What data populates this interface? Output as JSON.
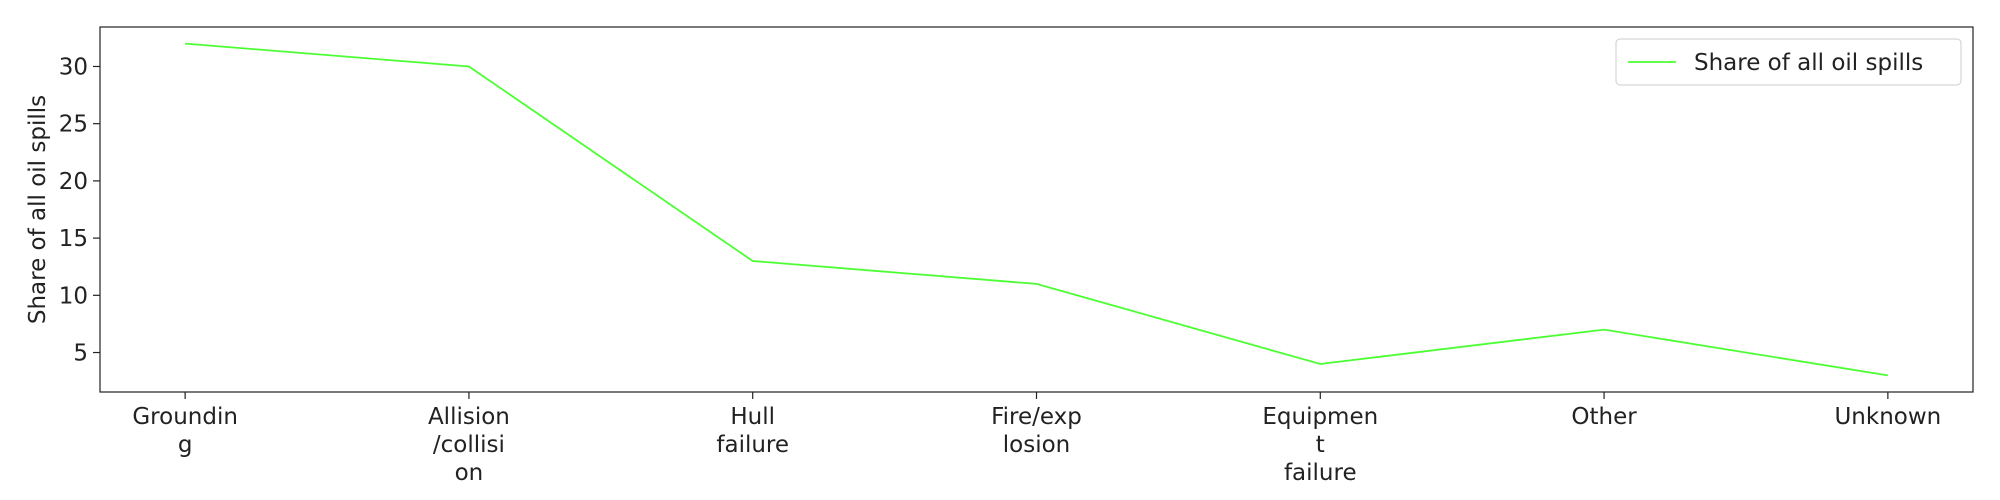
{
  "chart_data": {
    "type": "line",
    "y_label": "Share of all oil spills",
    "categories": [
      "Groundin\ng",
      "Allision\n/collisi\non",
      "Hull\nfailure",
      "Fire/exp\nlosion",
      "Equipmen\nt\nfailure",
      "Other",
      "Unknown"
    ],
    "series": [
      {
        "name": "Share of all oil spills",
        "color": "#4cff33",
        "values": [
          32,
          30,
          13,
          11,
          4,
          7,
          3
        ]
      }
    ],
    "ylim": [
      1.55,
      33.45
    ],
    "yticks": [
      5,
      10,
      15,
      20,
      25,
      30
    ],
    "legend": "upper right",
    "grid": false
  }
}
